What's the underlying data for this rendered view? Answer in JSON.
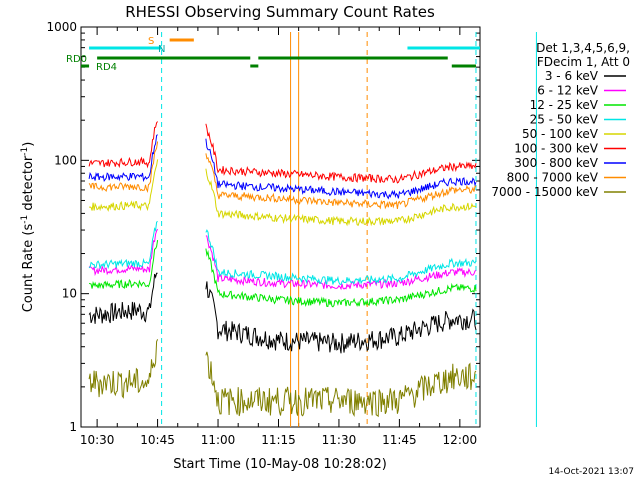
{
  "chart_data": {
    "type": "line",
    "title": "RHESSI Observing Summary Count Rates",
    "xlabel": "Start Time (10-May-08 10:28:02)",
    "ylabel_main": "Count Rate (s",
    "ylabel_sup": "-1",
    "ylabel_tail": " detector",
    "ylabel_close": ")",
    "y_scale": "log",
    "ylim": [
      1,
      1000
    ],
    "xlim": [
      "10:26",
      "12:05"
    ],
    "x_ticks": [
      "10:30",
      "10:45",
      "11:00",
      "11:15",
      "11:30",
      "11:45",
      "12:00"
    ],
    "y_ticks": [
      "1",
      "10",
      "100",
      "1000"
    ],
    "legend_header": [
      "Det 1,3,4,5,6,9,",
      "FDecim 1, Att 0"
    ],
    "timestamp": "14-Oct-2021 13:07",
    "flag_labels": {
      "rd0": "RD0",
      "rd4": "RD4",
      "s": "S",
      "n": "N"
    },
    "series": [
      {
        "name": "3 - 6 keV",
        "color": "#000000",
        "levels": [
          7.0,
          7.6,
          5.5,
          4.5,
          4.3,
          4.8,
          6.5
        ]
      },
      {
        "name": "6 - 12 keV",
        "color": "#ff00ff",
        "levels": [
          15.0,
          15.5,
          13.0,
          12.0,
          11.5,
          12.0,
          14.5
        ]
      },
      {
        "name": "12 - 25 keV",
        "color": "#00e600",
        "levels": [
          11.5,
          12.0,
          10.0,
          9.0,
          8.5,
          9.0,
          11.0
        ]
      },
      {
        "name": "25 - 50 keV",
        "color": "#00e6e6",
        "levels": [
          16.5,
          17.0,
          14.5,
          13.5,
          12.5,
          13.0,
          17.0
        ]
      },
      {
        "name": "50 - 100 keV",
        "color": "#d6d600",
        "levels": [
          45,
          46,
          40,
          37,
          35,
          35,
          45
        ]
      },
      {
        "name": "100 - 300 keV",
        "color": "#ff0000",
        "levels": [
          95,
          98,
          85,
          80,
          75,
          72,
          90
        ]
      },
      {
        "name": "300 - 800 keV",
        "color": "#0000ff",
        "levels": [
          75,
          76,
          66,
          62,
          58,
          55,
          70
        ]
      },
      {
        "name": "800 - 7000 keV",
        "color": "#ff8c00",
        "levels": [
          63,
          64,
          55,
          52,
          48,
          46,
          60
        ]
      },
      {
        "name": "7000 - 15000 keV",
        "color": "#808000",
        "levels": [
          2.2,
          2.2,
          1.6,
          1.6,
          1.6,
          1.6,
          2.4
        ]
      }
    ],
    "level_times": [
      "10:30",
      "10:40",
      "11:00",
      "11:15",
      "11:30",
      "11:45",
      "11:58"
    ]
  }
}
